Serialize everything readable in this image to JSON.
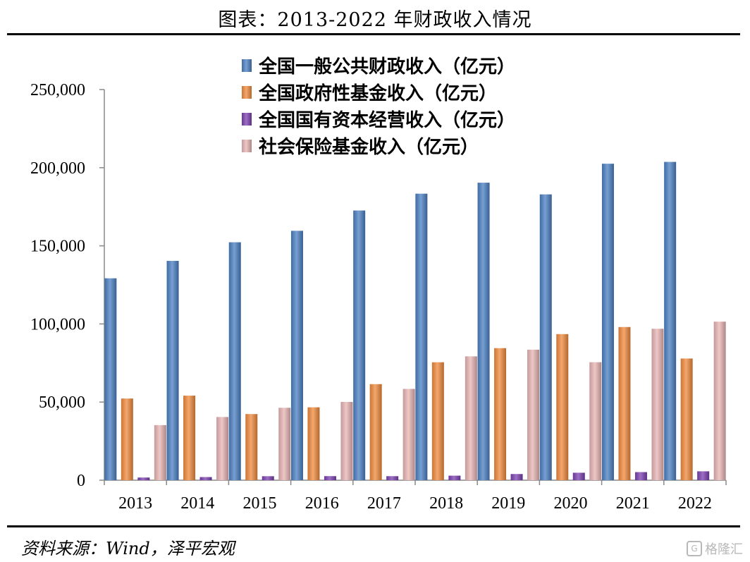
{
  "title": "图表：2013-2022 年财政收入情况",
  "source": "资料来源：Wind，泽平宏观",
  "watermark": "格隆汇",
  "colors": {
    "blue": "#4a7fc1",
    "orange": "#f08a3c",
    "purple": "#7b3fb0",
    "pink": "#e8b4b4"
  },
  "chart_data": {
    "type": "bar",
    "categories": [
      "2013",
      "2014",
      "2015",
      "2016",
      "2017",
      "2018",
      "2019",
      "2020",
      "2021",
      "2022"
    ],
    "ylim": [
      0,
      250000
    ],
    "yticks": [
      0,
      50000,
      100000,
      150000,
      200000,
      250000
    ],
    "ytick_labels": [
      "0",
      "50,000",
      "100,000",
      "150,000",
      "200,000",
      "250,000"
    ],
    "legend_position": "top-center",
    "grid": false,
    "series": [
      {
        "name": "全国一般公共财政收入（亿元）",
        "color": "#4a7fc1",
        "values": [
          129210,
          140370,
          152269,
          159605,
          172593,
          183360,
          190390,
          182914,
          202539,
          203703
        ]
      },
      {
        "name": "全国政府性基金收入（亿元）",
        "color": "#f08a3c",
        "values": [
          52269,
          54113,
          42330,
          46643,
          61480,
          75479,
          84516,
          93489,
          98024,
          77879
        ]
      },
      {
        "name": "全国国有资本经营收入（亿元）",
        "color": "#7b3fb0",
        "values": [
          1713,
          2008,
          2550,
          2609,
          2581,
          2906,
          3960,
          4778,
          5180,
          5689
        ]
      },
      {
        "name": "社会保险基金收入（亿元）",
        "color": "#e8b4b4",
        "values": [
          35253,
          40439,
          46354,
          50112,
          58438,
          79255,
          83550,
          75512,
          96916,
          101475
        ]
      }
    ]
  }
}
